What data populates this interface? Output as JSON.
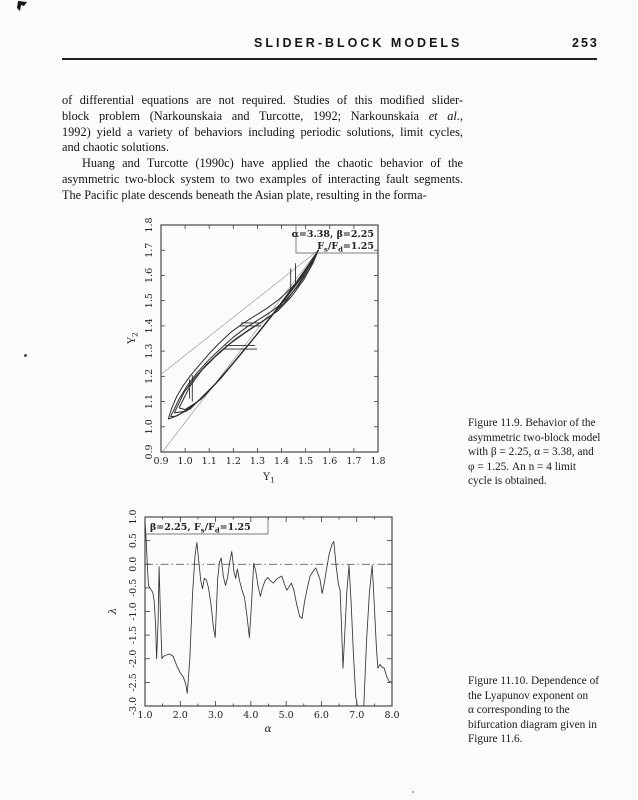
{
  "header": {
    "title": "SLIDER-BLOCK MODELS",
    "page_number": "253"
  },
  "body": {
    "l1": "of differential equations are not required. Studies of this modified slider-",
    "l2a": "block problem (Narkounskaia and Turcotte, 1992; Narkounskaia ",
    "l2b": "et al.,",
    "l3": "1992) yield a variety of behaviors including periodic solutions, limit cycles,",
    "l4": "and chaotic solutions.",
    "l5": "Huang and Turcotte (1990c) have applied the chaotic behavior of the",
    "l6": "asymmetric two-block system to two examples of interacting fault segments.",
    "l7": "The Pacific plate descends beneath the Asian plate, resulting in the forma-"
  },
  "captions": {
    "fig119": [
      "Figure 11.9. Behavior of the",
      "asymmetric two-block model",
      "with β = 2.25, α = 3.38, and",
      "φ = 1.25. An n = 4 limit",
      "cycle is obtained."
    ],
    "fig1110": [
      "Figure 11.10. Dependence of",
      "the Lyapunov exponent on",
      "α corresponding to the",
      "bifurcation diagram given in",
      "Figure 11.6."
    ]
  },
  "chart_data": [
    {
      "id": "fig-11-9",
      "type": "line",
      "title": "",
      "xlabel": "Y1",
      "ylabel": "Y2",
      "xlim": [
        0.9,
        1.8
      ],
      "ylim": [
        0.9,
        1.8
      ],
      "grid": false,
      "legend": "none",
      "xticks": [
        0.9,
        1.0,
        1.1,
        1.2,
        1.3,
        1.4,
        1.5,
        1.6,
        1.7,
        1.8
      ],
      "xtick_labels": [
        "0.9",
        "1.0",
        "1.1",
        "1.2",
        "1.3",
        "1.4",
        "1.5",
        "1.6",
        "1.7",
        "1.8"
      ],
      "yticks": [
        0.9,
        1.0,
        1.1,
        1.2,
        1.3,
        1.4,
        1.5,
        1.6,
        1.7,
        1.8
      ],
      "ytick_labels": [
        "0.9",
        "1.0",
        "1.1",
        "1.2",
        "1.3",
        "1.4",
        "1.5",
        "1.6",
        "1.7",
        "1.8"
      ],
      "annotation_lines": [
        {
          "text": "α=3.38, β=2.25",
          "segments": [
            {
              "t": "α=3.38, β=2.25"
            }
          ]
        },
        {
          "text": "Fs/Fd=1.25",
          "segments": [
            {
              "t": "F"
            },
            {
              "t": "s",
              "sub": true
            },
            {
              "t": "/F"
            },
            {
              "t": "d",
              "sub": true
            },
            {
              "t": "=1.25"
            }
          ]
        }
      ],
      "guide_lines": [
        [
          [
            0.905,
            0.9
          ],
          [
            1.553,
            1.7
          ]
        ],
        [
          [
            0.9,
            1.208
          ],
          [
            1.553,
            1.7
          ]
        ]
      ],
      "series": [
        {
          "name": "limit-cycle-loop-1",
          "points": [
            [
              0.93,
              1.03
            ],
            [
              0.945,
              1.075
            ],
            [
              0.965,
              1.12
            ],
            [
              0.99,
              1.16
            ],
            [
              1.02,
              1.2
            ],
            [
              1.055,
              1.24
            ],
            [
              1.095,
              1.285
            ],
            [
              1.14,
              1.33
            ],
            [
              1.19,
              1.375
            ],
            [
              1.24,
              1.41
            ],
            [
              1.29,
              1.44
            ],
            [
              1.34,
              1.47
            ],
            [
              1.39,
              1.505
            ],
            [
              1.44,
              1.55
            ],
            [
              1.49,
              1.605
            ],
            [
              1.53,
              1.66
            ],
            [
              1.553,
              1.7
            ],
            [
              1.51,
              1.64
            ],
            [
              1.455,
              1.565
            ],
            [
              1.39,
              1.48
            ],
            [
              1.31,
              1.38
            ],
            [
              1.22,
              1.275
            ],
            [
              1.13,
              1.175
            ],
            [
              1.04,
              1.09
            ],
            [
              0.97,
              1.045
            ],
            [
              0.93,
              1.03
            ]
          ]
        },
        {
          "name": "limit-cycle-loop-2",
          "points": [
            [
              0.94,
              1.04
            ],
            [
              0.975,
              1.11
            ],
            [
              1.01,
              1.165
            ],
            [
              1.05,
              1.215
            ],
            [
              1.095,
              1.262
            ],
            [
              1.145,
              1.308
            ],
            [
              1.2,
              1.355
            ],
            [
              1.255,
              1.395
            ],
            [
              1.31,
              1.428
            ],
            [
              1.365,
              1.462
            ],
            [
              1.42,
              1.505
            ],
            [
              1.47,
              1.56
            ],
            [
              1.515,
              1.625
            ],
            [
              1.553,
              1.7
            ],
            [
              1.5,
              1.622
            ],
            [
              1.44,
              1.545
            ],
            [
              1.37,
              1.455
            ],
            [
              1.285,
              1.352
            ],
            [
              1.195,
              1.248
            ],
            [
              1.105,
              1.148
            ],
            [
              1.02,
              1.07
            ],
            [
              0.96,
              1.042
            ],
            [
              0.94,
              1.04
            ]
          ]
        },
        {
          "name": "limit-cycle-loop-3",
          "points": [
            [
              0.955,
              1.055
            ],
            [
              0.995,
              1.135
            ],
            [
              1.04,
              1.195
            ],
            [
              1.09,
              1.248
            ],
            [
              1.145,
              1.298
            ],
            [
              1.205,
              1.345
            ],
            [
              1.265,
              1.385
            ],
            [
              1.325,
              1.42
            ],
            [
              1.385,
              1.46
            ],
            [
              1.44,
              1.515
            ],
            [
              1.49,
              1.58
            ],
            [
              1.53,
              1.648
            ],
            [
              1.553,
              1.7
            ],
            [
              1.488,
              1.6
            ],
            [
              1.42,
              1.515
            ],
            [
              1.345,
              1.422
            ],
            [
              1.26,
              1.322
            ],
            [
              1.17,
              1.218
            ],
            [
              1.08,
              1.122
            ],
            [
              1.005,
              1.062
            ],
            [
              0.955,
              1.055
            ]
          ]
        },
        {
          "name": "limit-cycle-loop-4",
          "points": [
            [
              0.975,
              1.075
            ],
            [
              1.02,
              1.16
            ],
            [
              1.07,
              1.225
            ],
            [
              1.125,
              1.278
            ],
            [
              1.185,
              1.328
            ],
            [
              1.245,
              1.37
            ],
            [
              1.305,
              1.408
            ],
            [
              1.365,
              1.448
            ],
            [
              1.42,
              1.5
            ],
            [
              1.47,
              1.565
            ],
            [
              1.515,
              1.635
            ],
            [
              1.553,
              1.7
            ],
            [
              1.47,
              1.575
            ],
            [
              1.4,
              1.488
            ],
            [
              1.32,
              1.392
            ],
            [
              1.235,
              1.292
            ],
            [
              1.148,
              1.192
            ],
            [
              1.065,
              1.108
            ],
            [
              1.0,
              1.068
            ],
            [
              0.975,
              1.075
            ]
          ]
        }
      ],
      "step_segments": [
        [
          [
            1.03,
            1.1
          ],
          [
            1.03,
            1.205
          ]
        ],
        [
          [
            1.018,
            1.112
          ],
          [
            1.018,
            1.188
          ]
        ],
        [
          [
            1.16,
            1.308
          ],
          [
            1.298,
            1.308
          ]
        ],
        [
          [
            1.168,
            1.322
          ],
          [
            1.29,
            1.322
          ]
        ],
        [
          [
            1.225,
            1.4
          ],
          [
            1.315,
            1.4
          ]
        ],
        [
          [
            1.232,
            1.412
          ],
          [
            1.312,
            1.412
          ]
        ],
        [
          [
            1.438,
            1.545
          ],
          [
            1.438,
            1.628
          ]
        ],
        [
          [
            1.458,
            1.562
          ],
          [
            1.458,
            1.648
          ]
        ]
      ]
    },
    {
      "id": "fig-11-10",
      "type": "line",
      "title": "",
      "xlabel": "α",
      "ylabel": "λ",
      "xlim": [
        1.0,
        8.0
      ],
      "ylim": [
        -3.0,
        1.0
      ],
      "grid": false,
      "legend": "none",
      "zero_line": 0.0,
      "xticks": [
        1.0,
        2.0,
        3.0,
        4.0,
        5.0,
        6.0,
        7.0,
        8.0
      ],
      "xtick_labels": [
        "1.0",
        "2.0",
        "3.0",
        "4.0",
        "5.0",
        "6.0",
        "7.0",
        "8.0"
      ],
      "xticks_minor": [
        1.5,
        2.5,
        3.5,
        4.5,
        5.5,
        6.5,
        7.5
      ],
      "yticks": [
        1.0,
        0.5,
        0.0,
        -0.5,
        -1.0,
        -1.5,
        -2.0,
        -2.5,
        -3.0
      ],
      "ytick_labels": [
        "1.0",
        "0.5",
        "0.0",
        "-0.5",
        "-1.0",
        "-1.5",
        "-2.0",
        "-2.5",
        "-3.0"
      ],
      "annotation": {
        "text": "β=2.25, Fs/Fd=1.25",
        "segments": [
          {
            "t": "β=2.25, F"
          },
          {
            "t": "s",
            "sub": true
          },
          {
            "t": "/F"
          },
          {
            "t": "d",
            "sub": true
          },
          {
            "t": "=1.25"
          }
        ]
      },
      "series": [
        {
          "name": "lyapunov-exponent",
          "points": [
            [
              1.0,
              0.9
            ],
            [
              1.03,
              0.55
            ],
            [
              1.07,
              -0.1
            ],
            [
              1.1,
              -0.45
            ],
            [
              1.14,
              -0.5
            ],
            [
              1.18,
              -0.55
            ],
            [
              1.22,
              -0.6
            ],
            [
              1.26,
              -0.78
            ],
            [
              1.3,
              -1.3
            ],
            [
              1.33,
              -2.0
            ],
            [
              1.37,
              -1.2
            ],
            [
              1.4,
              -0.05
            ],
            [
              1.44,
              -1.1
            ],
            [
              1.48,
              -2.0
            ],
            [
              1.52,
              -1.95
            ],
            [
              1.6,
              -1.92
            ],
            [
              1.7,
              -1.9
            ],
            [
              1.8,
              -1.95
            ],
            [
              1.9,
              -2.15
            ],
            [
              2.0,
              -2.3
            ],
            [
              2.08,
              -2.38
            ],
            [
              2.15,
              -2.52
            ],
            [
              2.2,
              -2.73
            ],
            [
              2.27,
              -2.0
            ],
            [
              2.35,
              -0.6
            ],
            [
              2.42,
              0.2
            ],
            [
              2.47,
              0.46
            ],
            [
              2.52,
              0.1
            ],
            [
              2.58,
              -0.35
            ],
            [
              2.63,
              -0.52
            ],
            [
              2.68,
              -0.3
            ],
            [
              2.74,
              -0.33
            ],
            [
              2.8,
              -0.5
            ],
            [
              2.87,
              -0.85
            ],
            [
              2.94,
              -1.35
            ],
            [
              2.99,
              -1.55
            ],
            [
              3.06,
              -0.3
            ],
            [
              3.11,
              0.05
            ],
            [
              3.16,
              0.13
            ],
            [
              3.22,
              -0.25
            ],
            [
              3.28,
              -0.45
            ],
            [
              3.34,
              -0.28
            ],
            [
              3.4,
              0.05
            ],
            [
              3.46,
              0.27
            ],
            [
              3.52,
              -0.15
            ],
            [
              3.57,
              -0.3
            ],
            [
              3.62,
              -0.1
            ],
            [
              3.68,
              -0.35
            ],
            [
              3.75,
              -0.55
            ],
            [
              3.82,
              -0.7
            ],
            [
              3.89,
              -1.1
            ],
            [
              3.96,
              -1.55
            ],
            [
              4.02,
              -0.8
            ],
            [
              4.08,
              0.02
            ],
            [
              4.14,
              -0.15
            ],
            [
              4.2,
              -0.45
            ],
            [
              4.27,
              -0.68
            ],
            [
              4.33,
              -0.5
            ],
            [
              4.4,
              -0.35
            ],
            [
              4.48,
              -0.28
            ],
            [
              4.56,
              -0.35
            ],
            [
              4.64,
              -0.4
            ],
            [
              4.72,
              -0.32
            ],
            [
              4.8,
              -0.28
            ],
            [
              4.88,
              -0.25
            ],
            [
              4.95,
              -0.42
            ],
            [
              5.02,
              -0.55
            ],
            [
              5.08,
              -0.48
            ],
            [
              5.15,
              -0.4
            ],
            [
              5.22,
              -0.55
            ],
            [
              5.3,
              -0.85
            ],
            [
              5.38,
              -1.1
            ],
            [
              5.45,
              -1.15
            ],
            [
              5.52,
              -0.8
            ],
            [
              5.6,
              -0.5
            ],
            [
              5.68,
              -0.25
            ],
            [
              5.76,
              -0.15
            ],
            [
              5.84,
              -0.08
            ],
            [
              5.9,
              -0.2
            ],
            [
              5.96,
              -0.32
            ],
            [
              6.02,
              -0.62
            ],
            [
              6.08,
              -0.4
            ],
            [
              6.14,
              -0.12
            ],
            [
              6.22,
              0.22
            ],
            [
              6.3,
              0.42
            ],
            [
              6.35,
              0.48
            ],
            [
              6.42,
              -0.05
            ],
            [
              6.48,
              -0.42
            ],
            [
              6.53,
              -0.55
            ],
            [
              6.57,
              -1.3
            ],
            [
              6.61,
              -2.2
            ],
            [
              6.66,
              -1.5
            ],
            [
              6.72,
              -0.6
            ],
            [
              6.78,
              -0.02
            ],
            [
              6.84,
              -0.8
            ],
            [
              6.9,
              -1.8
            ],
            [
              6.97,
              -2.8
            ],
            [
              7.02,
              -3.0
            ],
            [
              7.2,
              -3.0
            ],
            [
              7.28,
              -1.6
            ],
            [
              7.36,
              -0.6
            ],
            [
              7.44,
              -0.02
            ],
            [
              7.5,
              -0.9
            ],
            [
              7.56,
              -1.8
            ],
            [
              7.6,
              -2.2
            ],
            [
              7.66,
              -2.12
            ],
            [
              7.72,
              -2.18
            ],
            [
              7.78,
              -2.2
            ],
            [
              7.85,
              -2.38
            ],
            [
              7.92,
              -2.48
            ],
            [
              8.0,
              -2.5
            ]
          ]
        }
      ]
    }
  ]
}
